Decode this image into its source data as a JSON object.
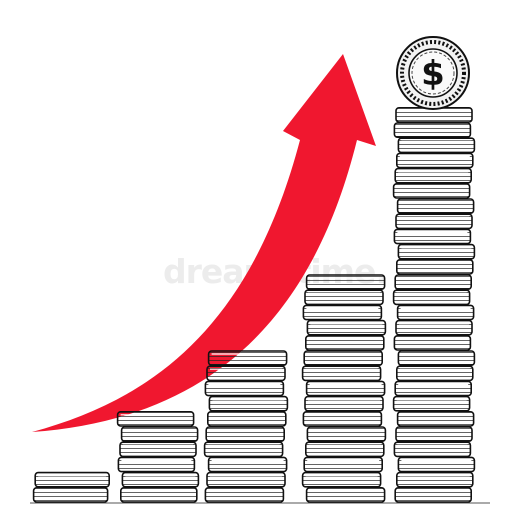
{
  "illustration": {
    "currency_symbol": "$",
    "watermark": "dreamstime.",
    "stacks_coin_counts": [
      2,
      6,
      10,
      15,
      26
    ],
    "arrow_color": "#f0172f",
    "ink_color": "#111111"
  }
}
